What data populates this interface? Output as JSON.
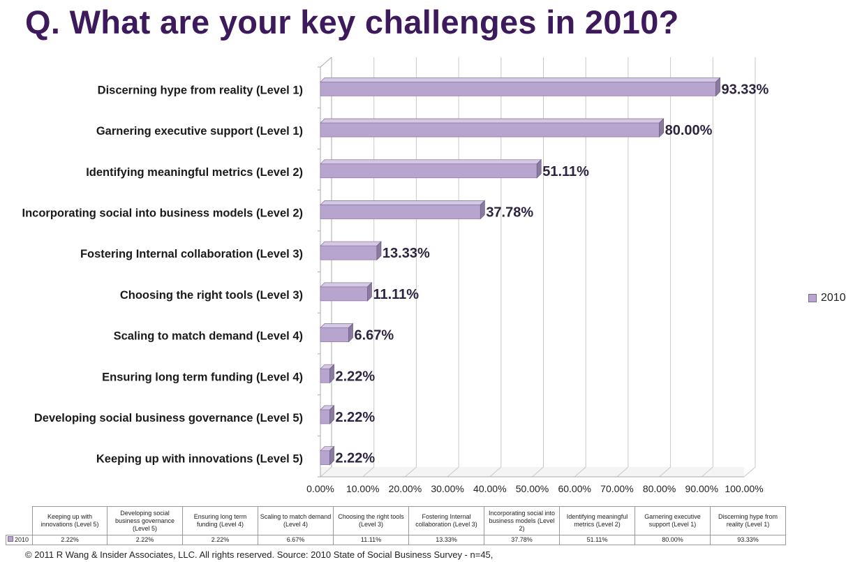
{
  "title": "Q. What are your key challenges in 2010?",
  "footer": "© 2011 R Wang & Insider Associates, LLC.  All rights reserved.  Source: 2010 State of Social Business Survey - n=45,",
  "colors": {
    "bar": "#b8a5cf",
    "title": "#3d1a5b",
    "label": "#2e2440"
  },
  "chart_data": {
    "type": "bar",
    "orientation": "horizontal",
    "style": "3d",
    "title": "Q. What are your key challenges in 2010?",
    "categories": [
      "Discerning hype from reality (Level 1)",
      "Garnering executive support (Level 1)",
      "Identifying meaningful metrics (Level 2)",
      "Incorporating social into business models (Level 2)",
      "Fostering Internal collaboration (Level 3)",
      "Choosing the right tools (Level 3)",
      "Scaling to match demand (Level 4)",
      "Ensuring long term funding (Level 4)",
      "Developing social business governance (Level 5)",
      "Keeping up with innovations (Level 5)"
    ],
    "series": [
      {
        "name": "2010",
        "values": [
          93.33,
          80.0,
          51.11,
          37.78,
          13.33,
          11.11,
          6.67,
          2.22,
          2.22,
          2.22
        ]
      }
    ],
    "data_labels": [
      "93.33%",
      "80.00%",
      "51.11%",
      "37.78%",
      "13.33%",
      "11.11%",
      "6.67%",
      "2.22%",
      "2.22%",
      "2.22%"
    ],
    "xlim": [
      0,
      100
    ],
    "xticks": [
      "0.00%",
      "10.00%",
      "20.00%",
      "30.00%",
      "40.00%",
      "50.00%",
      "60.00%",
      "70.00%",
      "80.00%",
      "90.00%",
      "100.00%"
    ],
    "grid": true,
    "legend": "right",
    "legend_label": "2010"
  },
  "table": {
    "series_label": "2010",
    "headers": [
      "Keeping up with innovations (Level 5)",
      "Developing social business governance (Level 5)",
      "Ensuring long term funding (Level 4)",
      "Scaling to match demand (Level 4)",
      "Choosing the right tools (Level 3)",
      "Fostering Internal collaboration (Level 3)",
      "Incorporating social into business models (Level 2)",
      "Identifying meaningful metrics (Level 2)",
      "Garnering executive support (Level 1)",
      "Discerning hype from reality (Level 1)"
    ],
    "values": [
      "2.22%",
      "2.22%",
      "2.22%",
      "6.67%",
      "11.11%",
      "13.33%",
      "37.78%",
      "51.11%",
      "80.00%",
      "93.33%"
    ]
  }
}
